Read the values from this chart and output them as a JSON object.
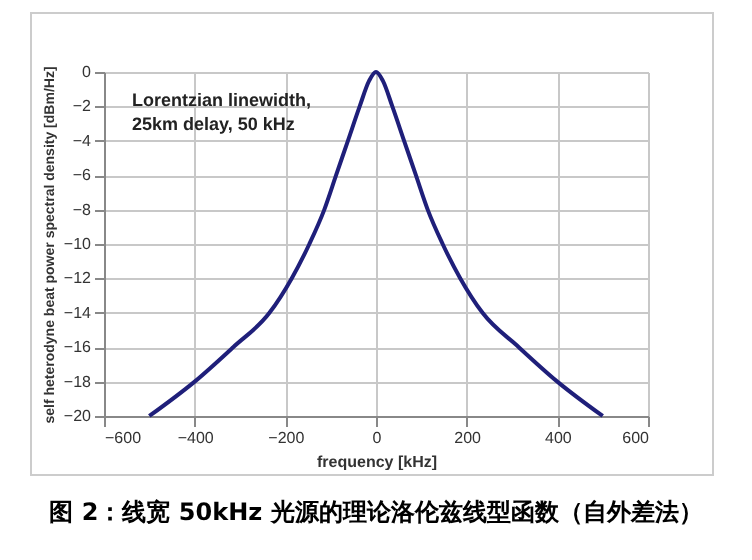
{
  "chart_data": {
    "type": "line",
    "xlabel": "frequency [kHz]",
    "ylabel": "self heterodyne beat power spectral density [dBm/Hz]",
    "x": [
      -500,
      -400,
      -315,
      -235,
      -186,
      -147,
      -114,
      -88,
      -62,
      -36,
      -15,
      0,
      15,
      36,
      62,
      88,
      114,
      147,
      186,
      235,
      315,
      400,
      500
    ],
    "series": [
      {
        "color": "#1f1f7a",
        "values": [
          -20,
          -18,
          -16,
          -14,
          -12,
          -10,
          -8,
          -6,
          -4,
          -2,
          -0.5,
          0,
          -0.5,
          -2,
          -4,
          -6,
          -8,
          -10,
          -12,
          -14,
          -16,
          -18,
          -20
        ]
      }
    ],
    "xlim": [
      -600,
      600
    ],
    "xticks": [
      -600,
      -400,
      -200,
      0,
      200,
      400,
      600
    ],
    "ylim": [
      -20,
      0
    ],
    "yticks": [
      -20,
      -18,
      -16,
      -14,
      -12,
      -10,
      -8,
      -6,
      -4,
      -2,
      0
    ],
    "grid": true,
    "marker": "none",
    "line_style": "solid",
    "annotations": [
      {
        "text": "Lorentzian linewidth,\n25km delay, 50 kHz"
      },
      "图 2：线宽 50kHz 光源的理论洛伦兹线型函数（自外差法）"
    ]
  }
}
